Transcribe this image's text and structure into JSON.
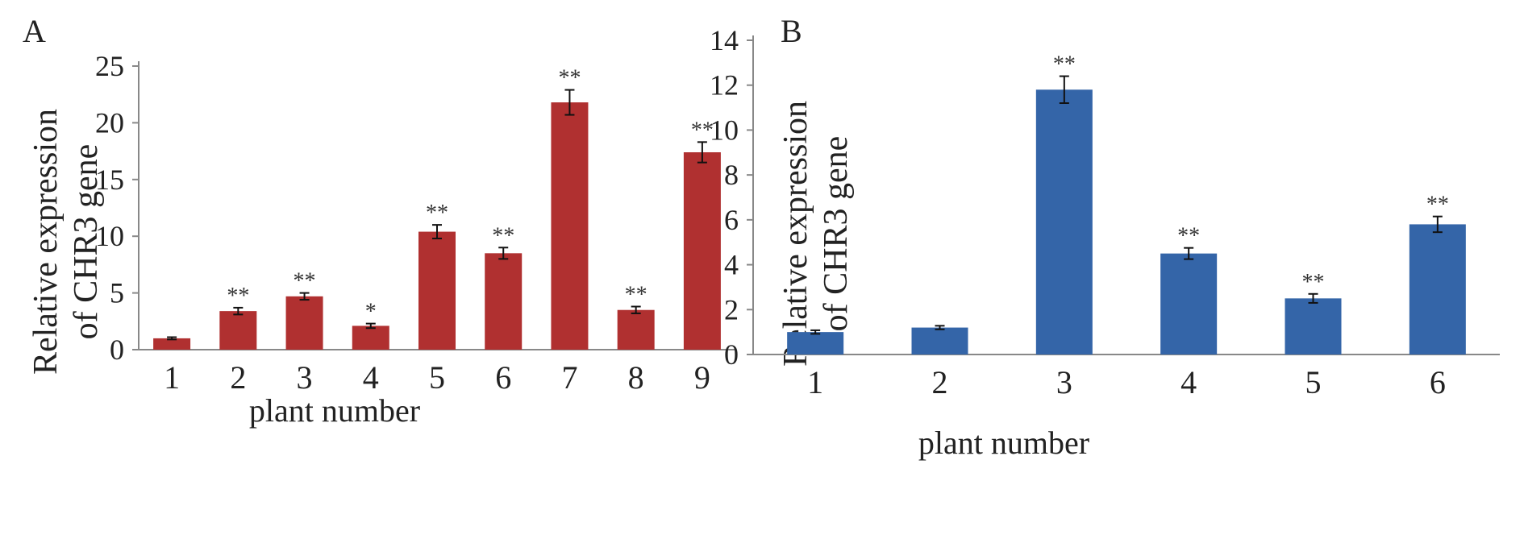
{
  "chart_data": [
    {
      "type": "bar",
      "panel_label": "A",
      "categories": [
        "1",
        "2",
        "3",
        "4",
        "5",
        "6",
        "7",
        "8",
        "9"
      ],
      "values": [
        1.0,
        3.4,
        4.7,
        2.1,
        10.4,
        8.5,
        21.8,
        3.5,
        17.4
      ],
      "errors": [
        0.1,
        0.3,
        0.3,
        0.2,
        0.6,
        0.5,
        1.1,
        0.3,
        0.9
      ],
      "significance": [
        "",
        "**",
        "**",
        "*",
        "**",
        "**",
        "**",
        "**",
        "**"
      ],
      "xlabel": "plant number",
      "ylabel": [
        "Relative expression",
        "of CHR3 gene"
      ],
      "ylim": [
        0,
        25
      ],
      "yticks": [
        0,
        5,
        10,
        15,
        20,
        25
      ],
      "grid": false,
      "color": "#b03030"
    },
    {
      "type": "bar",
      "panel_label": "B",
      "categories": [
        "1",
        "2",
        "3",
        "4",
        "5",
        "6"
      ],
      "values": [
        1.0,
        1.2,
        11.8,
        4.5,
        2.5,
        5.8
      ],
      "errors": [
        0.08,
        0.08,
        0.6,
        0.25,
        0.2,
        0.35
      ],
      "significance": [
        "",
        "",
        "**",
        "**",
        "**",
        "**"
      ],
      "xlabel": "plant number",
      "ylabel": [
        "Relative expression",
        "of CHR3 gene"
      ],
      "ylim": [
        0,
        14
      ],
      "yticks": [
        0,
        2,
        4,
        6,
        8,
        10,
        12,
        14
      ],
      "grid": false,
      "color": "#3465a8"
    }
  ]
}
